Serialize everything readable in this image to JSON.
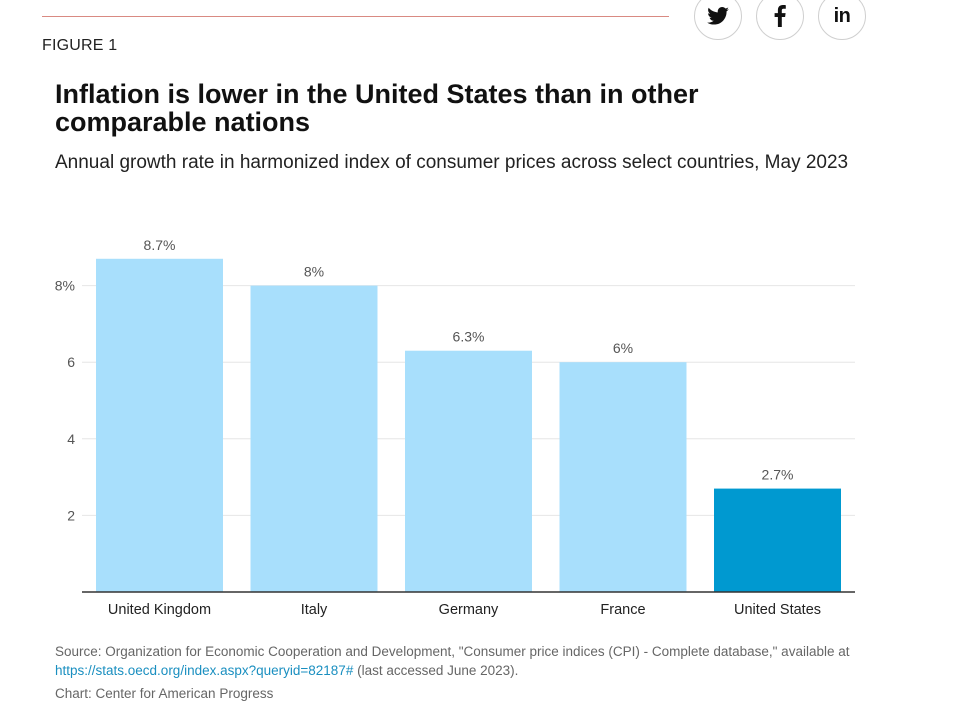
{
  "header": {
    "figure_label": "FIGURE 1"
  },
  "share": {
    "twitter_icon": "twitter-icon",
    "facebook_icon": "facebook-icon",
    "linkedin_text": "in"
  },
  "colors": {
    "bar_default": "#a8dffc",
    "bar_highlight": "#0099d0",
    "gridline": "#e6e6e6",
    "axis_line": "#333333",
    "rule": "#d98a82"
  },
  "chart_data": {
    "type": "bar",
    "title": "Inflation is lower in the United States than in other comparable nations",
    "subtitle": "Annual growth rate in harmonized index of consumer prices across select countries, May 2023",
    "categories": [
      "United Kingdom",
      "Italy",
      "Germany",
      "France",
      "United States"
    ],
    "values": [
      8.7,
      8,
      6.3,
      6,
      2.7
    ],
    "value_labels": [
      "8.7%",
      "8%",
      "6.3%",
      "6%",
      "2.7%"
    ],
    "highlight_index": 4,
    "y_ticks": [
      2,
      4,
      6,
      8
    ],
    "y_tick_labels": [
      "2",
      "4",
      "6",
      "8%"
    ],
    "ylim": [
      0,
      8.7
    ],
    "grid": true,
    "xlabel": "",
    "ylabel": ""
  },
  "footer": {
    "source_text": "Source: Organization for Economic Cooperation and Development, \"Consumer price indices (CPI) - Complete database,\" available at",
    "source_link": "https://stats.oecd.org/index.aspx?queryid=82187#",
    "source_suffix": " (last accessed June 2023).",
    "credit": "Chart: Center for American Progress"
  }
}
